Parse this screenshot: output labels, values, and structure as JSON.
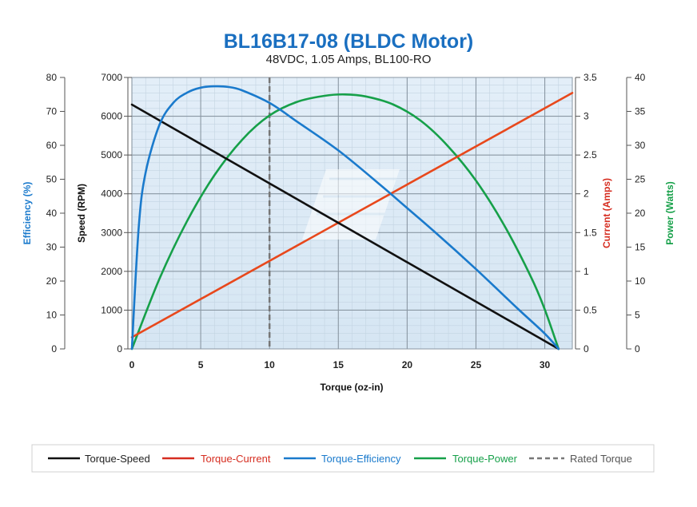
{
  "chart_data": {
    "type": "line",
    "title": "BL16B17-08 (BLDC Motor)",
    "subtitle": "48VDC, 1.05 Amps, BL100-RO",
    "xlabel": "Torque (oz-in)",
    "xlim": [
      0,
      32
    ],
    "x_ticks": [
      "0",
      "5",
      "10",
      "15",
      "20",
      "25",
      "30"
    ],
    "grid": true,
    "legend_position": "bottom",
    "axes": {
      "efficiency": {
        "label": "Efficiency (%)",
        "range": [
          0,
          80
        ],
        "ticks": [
          "0",
          "10",
          "20",
          "30",
          "40",
          "50",
          "60",
          "70",
          "80"
        ],
        "color": "#1a7acc"
      },
      "speed": {
        "label": "Speed (RPM)",
        "range": [
          0,
          7000
        ],
        "ticks": [
          "0",
          "1000",
          "2000",
          "3000",
          "4000",
          "5000",
          "6000",
          "7000"
        ],
        "color": "#111111"
      },
      "current": {
        "label": "Current (Amps)",
        "range": [
          0,
          3.5
        ],
        "ticks": [
          "0",
          "0.5",
          "1",
          "1.5",
          "2",
          "2.5",
          "3",
          "3.5"
        ],
        "color": "#d62d20"
      },
      "power": {
        "label": "Power (Watts)",
        "range": [
          0,
          40
        ],
        "ticks": [
          "0",
          "5",
          "10",
          "15",
          "20",
          "25",
          "30",
          "35",
          "40"
        ],
        "color": "#16a049"
      }
    },
    "series": [
      {
        "name": "Torque-Speed",
        "axis": "speed",
        "color": "#111111",
        "x": [
          0,
          31.0
        ],
        "y": [
          6300,
          0
        ]
      },
      {
        "name": "Torque-Current",
        "axis": "current",
        "color": "#e8481c",
        "x": [
          0,
          32.0
        ],
        "y": [
          0.15,
          3.3
        ]
      },
      {
        "name": "Torque-Efficiency",
        "axis": "efficiency",
        "color": "#1a7acc",
        "x": [
          0,
          0.5,
          1,
          2,
          3,
          4,
          5,
          6,
          7,
          8,
          10,
          12,
          15,
          18,
          20,
          22,
          25,
          28,
          30,
          31.0
        ],
        "y": [
          0,
          36,
          52,
          66,
          72.5,
          75.5,
          77,
          77.4,
          77.2,
          76.2,
          72.5,
          67,
          58.5,
          48.5,
          41.5,
          34.5,
          23.5,
          12,
          4.5,
          0
        ]
      },
      {
        "name": "Torque-Power",
        "axis": "power",
        "color": "#16a049",
        "x": [
          0,
          2,
          4,
          6,
          8,
          10,
          12,
          14,
          15.5,
          17,
          19,
          21,
          23,
          25,
          27,
          29,
          30,
          31.0
        ],
        "y": [
          0,
          10.3,
          18.8,
          25.6,
          30.8,
          34.4,
          36.4,
          37.3,
          37.5,
          37.2,
          36.0,
          33.6,
          29.8,
          24.8,
          18.4,
          10.6,
          5.8,
          0
        ]
      }
    ],
    "rated_torque": {
      "name": "Rated Torque",
      "x": 10,
      "color": "#777777"
    }
  }
}
